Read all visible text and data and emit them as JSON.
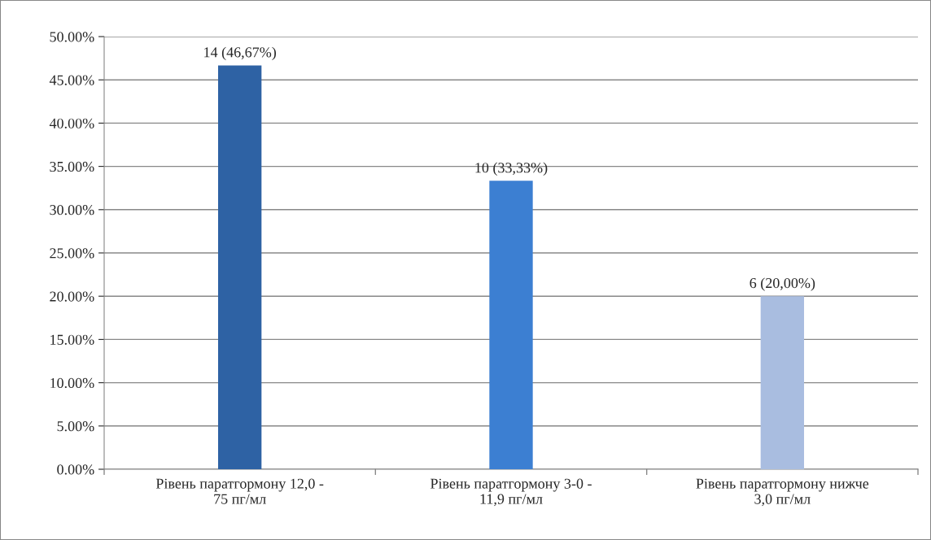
{
  "chart_data": {
    "type": "bar",
    "categories": [
      "Рівень паратгормону 12,0 -\n75 пг/мл",
      "Рівень паратгормону 3-0 -\n11,9 пг/мл",
      "Рівень паратгормону нижче\n3,0 пг/мл"
    ],
    "values": [
      46.67,
      33.33,
      20.0
    ],
    "colors": [
      "#2e62a4",
      "#3c7fd2",
      "#a9bde0"
    ],
    "value_labels": [
      "14 (46,67%)",
      "10 (33,33%)",
      "6 (20,00%)"
    ],
    "ylim": [
      0,
      50
    ],
    "yticks": [
      {
        "value": 0,
        "label": "0.00%"
      },
      {
        "value": 5,
        "label": "5.00%"
      },
      {
        "value": 10,
        "label": "10.00%"
      },
      {
        "value": 15,
        "label": "15.00%"
      },
      {
        "value": 20,
        "label": "20.00%"
      },
      {
        "value": 25,
        "label": "25.00%"
      },
      {
        "value": 30,
        "label": "30.00%"
      },
      {
        "value": 35,
        "label": "35.00%"
      },
      {
        "value": 40,
        "label": "40.00%"
      },
      {
        "value": 45,
        "label": "45.00%"
      },
      {
        "value": 50,
        "label": "50.00%"
      }
    ],
    "grid": "y",
    "legend": false
  }
}
